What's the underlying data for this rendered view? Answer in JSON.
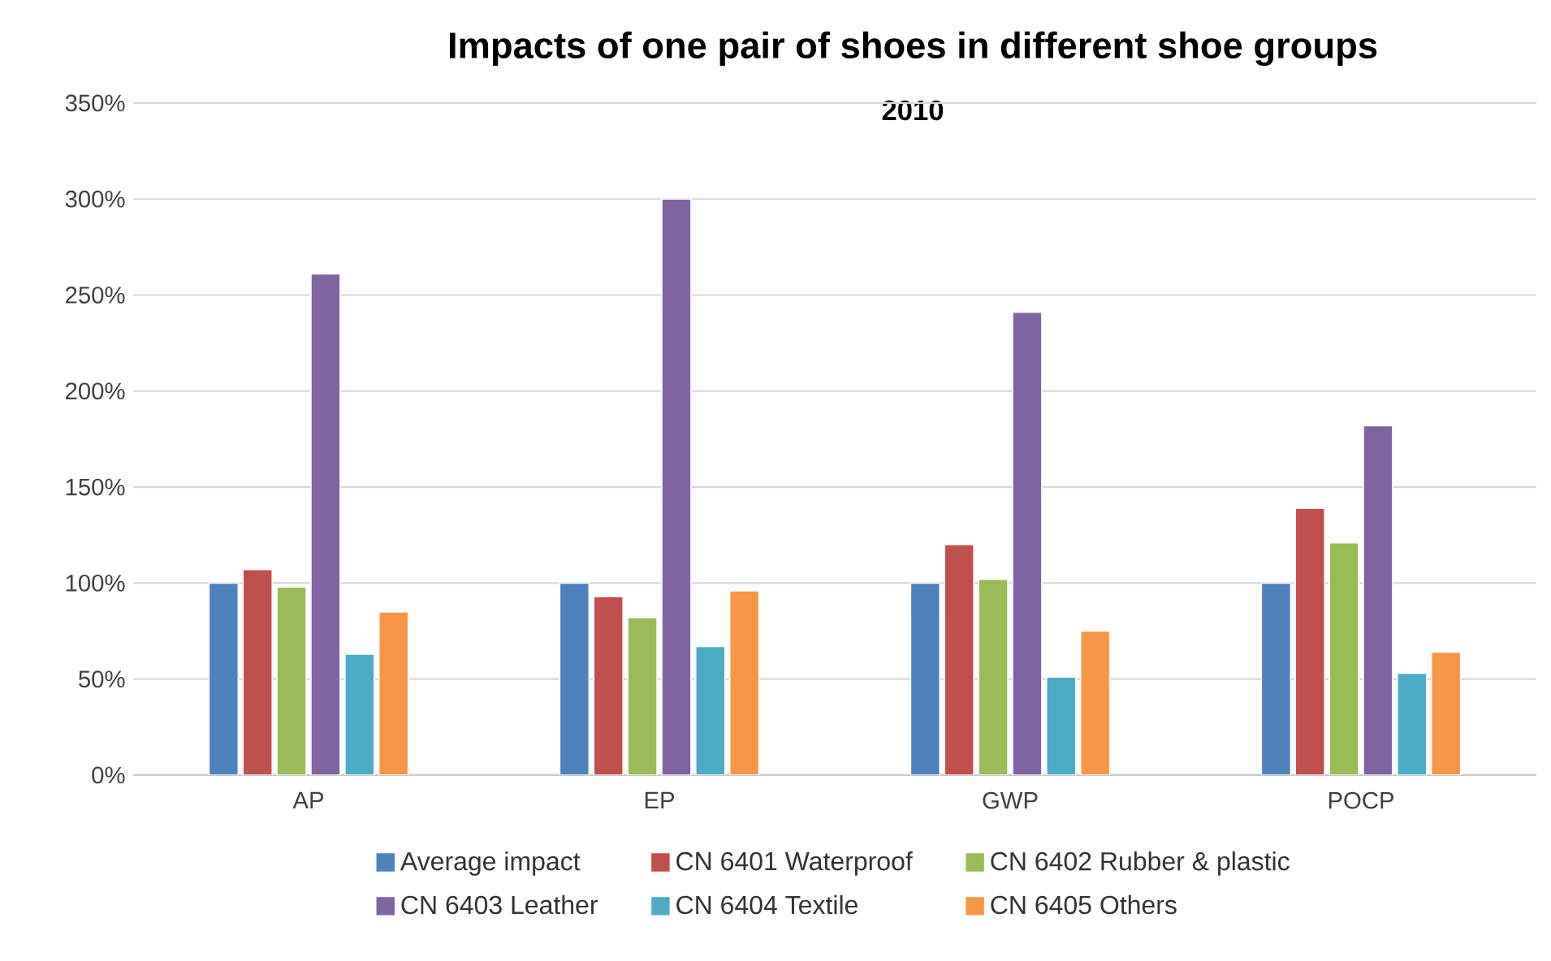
{
  "chart_data": {
    "type": "bar",
    "title": "Impacts of one pair of shoes in different shoe groups",
    "subtitle": "2010",
    "categories": [
      "AP",
      "EP",
      "GWP",
      "POCP"
    ],
    "series": [
      {
        "name": "Average impact",
        "color": "#4f81bd",
        "values": [
          100,
          100,
          100,
          100
        ]
      },
      {
        "name": "CN 6401 Waterproof",
        "color": "#c0504d",
        "values": [
          107,
          93,
          120,
          139
        ]
      },
      {
        "name": "CN 6402 Rubber & plastic",
        "color": "#9bbb59",
        "values": [
          98,
          82,
          102,
          121
        ]
      },
      {
        "name": "CN 6403 Leather",
        "color": "#8064a2",
        "values": [
          261,
          300,
          241,
          182
        ]
      },
      {
        "name": "CN 6404 Textile",
        "color": "#4bacc6",
        "values": [
          63,
          67,
          51,
          53
        ]
      },
      {
        "name": "CN 6405 Others",
        "color": "#f79646",
        "values": [
          85,
          96,
          75,
          64
        ]
      }
    ],
    "ylim": [
      0,
      350
    ],
    "yticks": [
      {
        "value": 0,
        "label": "0%"
      },
      {
        "value": 50,
        "label": "50%"
      },
      {
        "value": 100,
        "label": "100%"
      },
      {
        "value": 150,
        "label": "150%"
      },
      {
        "value": 200,
        "label": "200%"
      },
      {
        "value": 250,
        "label": "250%"
      },
      {
        "value": 300,
        "label": "300%"
      },
      {
        "value": 350,
        "label": "350%"
      }
    ],
    "grid": "y",
    "legend": "bottom"
  }
}
